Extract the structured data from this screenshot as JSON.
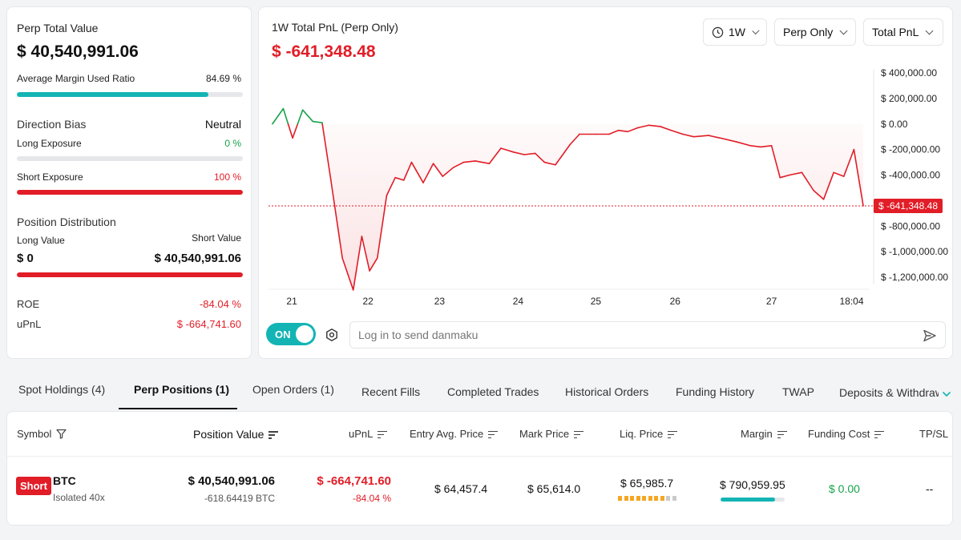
{
  "summary": {
    "title": "Perp Total Value",
    "total_value": "$ 40,540,991.06",
    "margin_label": "Average Margin Used Ratio",
    "margin_value": "84.69 %",
    "margin_ratio": 0.8469,
    "direction_label": "Direction Bias",
    "direction_value": "Neutral",
    "long_exposure_label": "Long Exposure",
    "long_exposure_value": "0 %",
    "long_exposure_ratio": 0,
    "short_exposure_label": "Short Exposure",
    "short_exposure_value": "100 %",
    "short_exposure_ratio": 1,
    "distribution_label": "Position Distribution",
    "long_value_label": "Long Value",
    "short_value_label": "Short Value",
    "long_value": "$ 0",
    "short_value": "$ 40,540,991.06",
    "short_share": 1,
    "roe_label": "ROE",
    "roe_value": "-84.04 %",
    "upnl_label": "uPnL",
    "upnl_value": "$ -664,741.60"
  },
  "chart_panel": {
    "title": "1W Total PnL (Perp Only)",
    "current_value": "$ -641,348.48",
    "dropdowns": {
      "period": "1W",
      "scope": "Perp Only",
      "metric": "Total PnL"
    },
    "toggle_label": "ON",
    "danmaku_placeholder": "Log in to send danmaku"
  },
  "chart_data": {
    "type": "line",
    "title": "1W Total PnL (Perp Only)",
    "xlabel": "",
    "ylabel": "",
    "x_ticks": [
      "21",
      "22",
      "23",
      "24",
      "25",
      "26",
      "27",
      "18:04"
    ],
    "x_tick_positions": [
      0.3,
      1.28,
      2.2,
      3.21,
      4.21,
      5.23,
      6.47,
      7.5
    ],
    "y_ticks": [
      400000,
      200000,
      0,
      -200000,
      -400000,
      -800000,
      -1000000,
      -1200000
    ],
    "y_tick_labels": [
      "$ 400,000.00",
      "$ 200,000.00",
      "$ 0.00",
      "$ -200,000.00",
      "$ -400,000.00",
      "$ -800,000.00",
      "$ -1,000,000.00",
      "$ -1,200,000.00"
    ],
    "ylim": [
      -1200000,
      400000
    ],
    "current_marker_label": "$ -641,348.48",
    "current_value": -641348.48,
    "series": [
      {
        "values": [
          [
            0.05,
            0
          ],
          [
            0.19,
            120000
          ],
          [
            0.31,
            -110000
          ],
          [
            0.44,
            110000
          ],
          [
            0.57,
            20000
          ],
          [
            0.69,
            10000
          ],
          [
            0.8,
            -430000
          ],
          [
            0.95,
            -1050000
          ],
          [
            1.09,
            -1300000
          ],
          [
            1.2,
            -880000
          ],
          [
            1.3,
            -1150000
          ],
          [
            1.4,
            -1050000
          ],
          [
            1.52,
            -560000
          ],
          [
            1.63,
            -420000
          ],
          [
            1.74,
            -440000
          ],
          [
            1.84,
            -300000
          ],
          [
            1.99,
            -460000
          ],
          [
            2.12,
            -310000
          ],
          [
            2.24,
            -410000
          ],
          [
            2.38,
            -340000
          ],
          [
            2.51,
            -300000
          ],
          [
            2.66,
            -290000
          ],
          [
            2.84,
            -310000
          ],
          [
            2.99,
            -190000
          ],
          [
            3.15,
            -220000
          ],
          [
            3.29,
            -240000
          ],
          [
            3.43,
            -230000
          ],
          [
            3.55,
            -300000
          ],
          [
            3.69,
            -320000
          ],
          [
            3.88,
            -160000
          ],
          [
            4.0,
            -80000
          ],
          [
            4.21,
            -80000
          ],
          [
            4.38,
            -80000
          ],
          [
            4.5,
            -50000
          ],
          [
            4.62,
            -60000
          ],
          [
            4.75,
            -30000
          ],
          [
            4.89,
            -10000
          ],
          [
            5.04,
            -20000
          ],
          [
            5.18,
            -50000
          ],
          [
            5.33,
            -80000
          ],
          [
            5.47,
            -100000
          ],
          [
            5.66,
            -90000
          ],
          [
            5.81,
            -110000
          ],
          [
            6.02,
            -140000
          ],
          [
            6.2,
            -170000
          ],
          [
            6.33,
            -180000
          ],
          [
            6.47,
            -170000
          ],
          [
            6.58,
            -420000
          ],
          [
            6.7,
            -400000
          ],
          [
            6.86,
            -380000
          ],
          [
            7.01,
            -520000
          ],
          [
            7.14,
            -590000
          ],
          [
            7.27,
            -380000
          ],
          [
            7.4,
            -410000
          ],
          [
            7.53,
            -200000
          ],
          [
            7.65,
            -641348.48
          ]
        ]
      }
    ]
  },
  "tabs": [
    "Spot Holdings (4)",
    "Perp Positions (1)",
    "Open Orders (1)",
    "Recent Fills",
    "Completed Trades",
    "Historical Orders",
    "Funding History",
    "TWAP",
    "Deposits & Withdraw"
  ],
  "table": {
    "headers": {
      "symbol": "Symbol",
      "position_value": "Position Value",
      "upnl": "uPnL",
      "entry": "Entry Avg. Price",
      "mark": "Mark Price",
      "liq": "Liq. Price",
      "margin": "Margin",
      "funding": "Funding Cost",
      "tpsl": "TP/SL"
    },
    "row": {
      "side": "Short",
      "symbol": "BTC",
      "mode": "Isolated 40x",
      "position_value": "$ 40,540,991.06",
      "position_size": "-618.64419 BTC",
      "upnl": "$ -664,741.60",
      "upnl_pct": "-84.04 %",
      "entry": "$ 64,457.4",
      "mark": "$ 65,614.0",
      "liq": "$ 65,985.7",
      "liq_risk_ratio": 0.8,
      "margin": "$ 790,959.95",
      "margin_ratio": 0.8469,
      "funding": "$ 0.00",
      "tpsl": "--"
    }
  },
  "colors": {
    "accent": "#14b4b4",
    "negative": "#e11d27",
    "positive": "#16a34a",
    "warning": "#f5a623"
  }
}
